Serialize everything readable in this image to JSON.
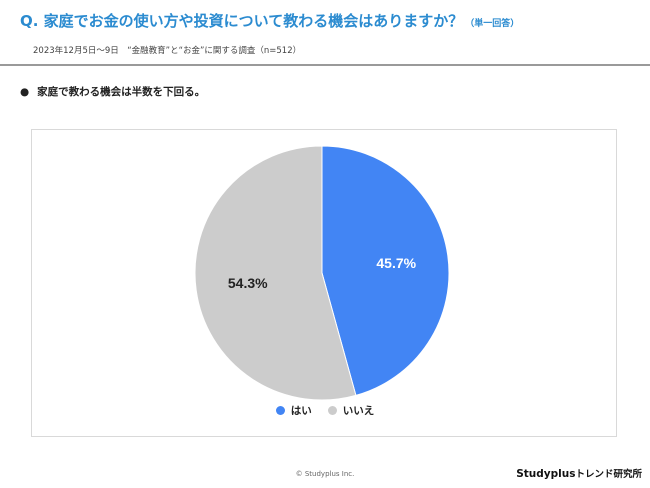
{
  "header": {
    "question": "Q. 家庭でお金の使い方や投資について教わる機会はありますか？",
    "question_note": "（単一回答）",
    "survey_info": "2023年12月5日～9日　“金融教育”と“お金”に関する調査（n=512）"
  },
  "finding": {
    "bullet": "●",
    "text": "家庭で教わる機会は半数を下回る。"
  },
  "chart_data": {
    "type": "pie",
    "title": "",
    "categories": [
      "はい",
      "いいえ"
    ],
    "values": [
      45.7,
      54.3
    ],
    "labels": [
      "45.7%",
      "54.3%"
    ],
    "colors": [
      "#4285f4",
      "#cccccc"
    ],
    "start": "12 o'clock",
    "direction": "clockwise",
    "legend_position": "bottom"
  },
  "footer": {
    "copyright": "© Studyplus Inc.",
    "brand": "Studyplus",
    "brand_sub": "トレンド研究所"
  }
}
